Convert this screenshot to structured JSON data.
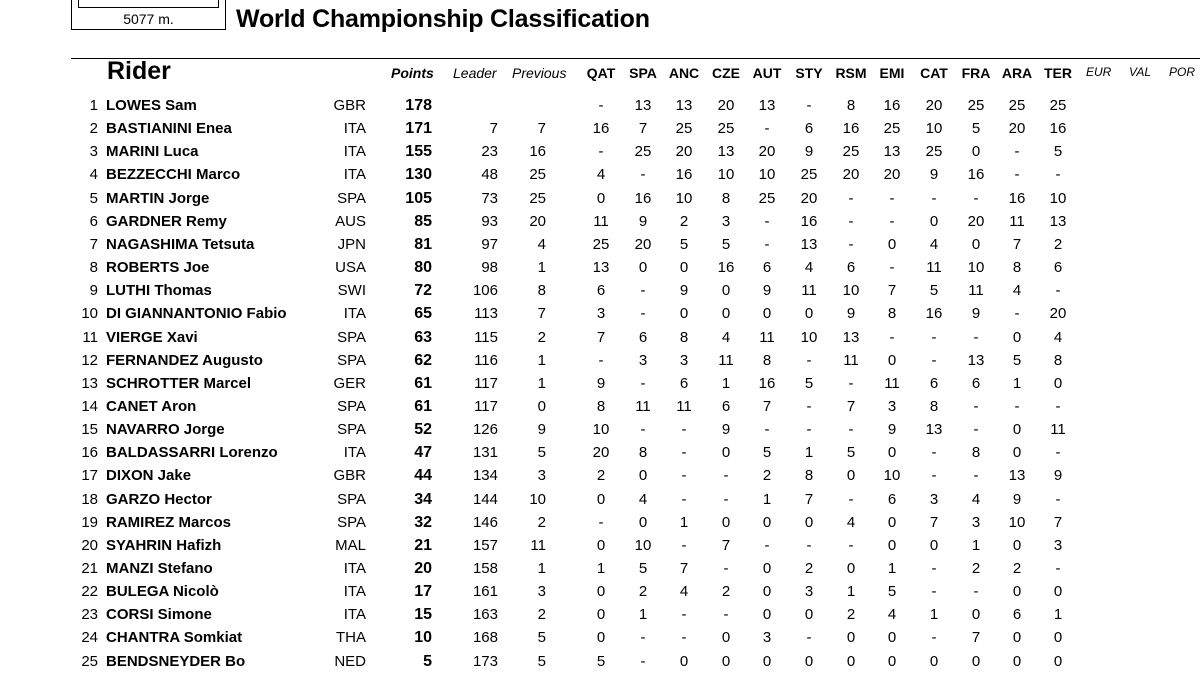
{
  "track_length": "5077 m.",
  "title": "World Championship Classification",
  "headers": {
    "rider": "Rider",
    "points": "Points",
    "leader": "Leader",
    "previous": "Previous",
    "rounds": [
      "QAT",
      "SPA",
      "ANC",
      "CZE",
      "AUT",
      "STY",
      "RSM",
      "EMI",
      "CAT",
      "FRA",
      "ARA",
      "TER"
    ],
    "future_rounds": [
      "EUR",
      "VAL",
      "POR"
    ]
  },
  "rows": [
    {
      "pos": "1",
      "name": "LOWES Sam",
      "nat": "GBR",
      "points": "178",
      "leader": "",
      "previous": "",
      "rounds": [
        "-",
        "13",
        "13",
        "20",
        "13",
        "-",
        "8",
        "16",
        "20",
        "25",
        "25",
        "25"
      ]
    },
    {
      "pos": "2",
      "name": "BASTIANINI Enea",
      "nat": "ITA",
      "points": "171",
      "leader": "7",
      "previous": "7",
      "rounds": [
        "16",
        "7",
        "25",
        "25",
        "-",
        "6",
        "16",
        "25",
        "10",
        "5",
        "20",
        "16"
      ]
    },
    {
      "pos": "3",
      "name": "MARINI Luca",
      "nat": "ITA",
      "points": "155",
      "leader": "23",
      "previous": "16",
      "rounds": [
        "-",
        "25",
        "20",
        "13",
        "20",
        "9",
        "25",
        "13",
        "25",
        "0",
        "-",
        "5"
      ]
    },
    {
      "pos": "4",
      "name": "BEZZECCHI Marco",
      "nat": "ITA",
      "points": "130",
      "leader": "48",
      "previous": "25",
      "rounds": [
        "4",
        "-",
        "16",
        "10",
        "10",
        "25",
        "20",
        "20",
        "9",
        "16",
        "-",
        "-"
      ]
    },
    {
      "pos": "5",
      "name": "MARTIN Jorge",
      "nat": "SPA",
      "points": "105",
      "leader": "73",
      "previous": "25",
      "rounds": [
        "0",
        "16",
        "10",
        "8",
        "25",
        "20",
        "-",
        "-",
        "-",
        "-",
        "16",
        "10"
      ]
    },
    {
      "pos": "6",
      "name": "GARDNER Remy",
      "nat": "AUS",
      "points": "85",
      "leader": "93",
      "previous": "20",
      "rounds": [
        "11",
        "9",
        "2",
        "3",
        "-",
        "16",
        "-",
        "-",
        "0",
        "20",
        "11",
        "13"
      ]
    },
    {
      "pos": "7",
      "name": "NAGASHIMA Tetsuta",
      "nat": "JPN",
      "points": "81",
      "leader": "97",
      "previous": "4",
      "rounds": [
        "25",
        "20",
        "5",
        "5",
        "-",
        "13",
        "-",
        "0",
        "4",
        "0",
        "7",
        "2"
      ]
    },
    {
      "pos": "8",
      "name": "ROBERTS Joe",
      "nat": "USA",
      "points": "80",
      "leader": "98",
      "previous": "1",
      "rounds": [
        "13",
        "0",
        "0",
        "16",
        "6",
        "4",
        "6",
        "-",
        "11",
        "10",
        "8",
        "6"
      ]
    },
    {
      "pos": "9",
      "name": "LUTHI Thomas",
      "nat": "SWI",
      "points": "72",
      "leader": "106",
      "previous": "8",
      "rounds": [
        "6",
        "-",
        "9",
        "0",
        "9",
        "11",
        "10",
        "7",
        "5",
        "11",
        "4",
        "-"
      ]
    },
    {
      "pos": "10",
      "name": "DI GIANNANTONIO Fabio",
      "nat": "ITA",
      "points": "65",
      "leader": "113",
      "previous": "7",
      "rounds": [
        "3",
        "-",
        "0",
        "0",
        "0",
        "0",
        "9",
        "8",
        "16",
        "9",
        "-",
        "20"
      ]
    },
    {
      "pos": "11",
      "name": "VIERGE Xavi",
      "nat": "SPA",
      "points": "63",
      "leader": "115",
      "previous": "2",
      "rounds": [
        "7",
        "6",
        "8",
        "4",
        "11",
        "10",
        "13",
        "-",
        "-",
        "-",
        "0",
        "4"
      ]
    },
    {
      "pos": "12",
      "name": "FERNANDEZ Augusto",
      "nat": "SPA",
      "points": "62",
      "leader": "116",
      "previous": "1",
      "rounds": [
        "-",
        "3",
        "3",
        "11",
        "8",
        "-",
        "11",
        "0",
        "-",
        "13",
        "5",
        "8"
      ]
    },
    {
      "pos": "13",
      "name": "SCHROTTER Marcel",
      "nat": "GER",
      "points": "61",
      "leader": "117",
      "previous": "1",
      "rounds": [
        "9",
        "-",
        "6",
        "1",
        "16",
        "5",
        "-",
        "11",
        "6",
        "6",
        "1",
        "0"
      ]
    },
    {
      "pos": "14",
      "name": "CANET Aron",
      "nat": "SPA",
      "points": "61",
      "leader": "117",
      "previous": "0",
      "rounds": [
        "8",
        "11",
        "11",
        "6",
        "7",
        "-",
        "7",
        "3",
        "8",
        "-",
        "-",
        "-"
      ]
    },
    {
      "pos": "15",
      "name": "NAVARRO Jorge",
      "nat": "SPA",
      "points": "52",
      "leader": "126",
      "previous": "9",
      "rounds": [
        "10",
        "-",
        "-",
        "9",
        "-",
        "-",
        "-",
        "9",
        "13",
        "-",
        "0",
        "11"
      ]
    },
    {
      "pos": "16",
      "name": "BALDASSARRI Lorenzo",
      "nat": "ITA",
      "points": "47",
      "leader": "131",
      "previous": "5",
      "rounds": [
        "20",
        "8",
        "-",
        "0",
        "5",
        "1",
        "5",
        "0",
        "-",
        "8",
        "0",
        "-"
      ]
    },
    {
      "pos": "17",
      "name": "DIXON Jake",
      "nat": "GBR",
      "points": "44",
      "leader": "134",
      "previous": "3",
      "rounds": [
        "2",
        "0",
        "-",
        "-",
        "2",
        "8",
        "0",
        "10",
        "-",
        "-",
        "13",
        "9"
      ]
    },
    {
      "pos": "18",
      "name": "GARZO Hector",
      "nat": "SPA",
      "points": "34",
      "leader": "144",
      "previous": "10",
      "rounds": [
        "0",
        "4",
        "-",
        "-",
        "1",
        "7",
        "-",
        "6",
        "3",
        "4",
        "9",
        "-"
      ]
    },
    {
      "pos": "19",
      "name": "RAMIREZ Marcos",
      "nat": "SPA",
      "points": "32",
      "leader": "146",
      "previous": "2",
      "rounds": [
        "-",
        "0",
        "1",
        "0",
        "0",
        "0",
        "4",
        "0",
        "7",
        "3",
        "10",
        "7"
      ]
    },
    {
      "pos": "20",
      "name": "SYAHRIN Hafizh",
      "nat": "MAL",
      "points": "21",
      "leader": "157",
      "previous": "11",
      "rounds": [
        "0",
        "10",
        "-",
        "7",
        "-",
        "-",
        "-",
        "0",
        "0",
        "1",
        "0",
        "3"
      ]
    },
    {
      "pos": "21",
      "name": "MANZI Stefano",
      "nat": "ITA",
      "points": "20",
      "leader": "158",
      "previous": "1",
      "rounds": [
        "1",
        "5",
        "7",
        "-",
        "0",
        "2",
        "0",
        "1",
        "-",
        "2",
        "2",
        "-"
      ]
    },
    {
      "pos": "22",
      "name": "BULEGA Nicolò",
      "nat": "ITA",
      "points": "17",
      "leader": "161",
      "previous": "3",
      "rounds": [
        "0",
        "2",
        "4",
        "2",
        "0",
        "3",
        "1",
        "5",
        "-",
        "-",
        "0",
        "0"
      ]
    },
    {
      "pos": "23",
      "name": "CORSI Simone",
      "nat": "ITA",
      "points": "15",
      "leader": "163",
      "previous": "2",
      "rounds": [
        "0",
        "1",
        "-",
        "-",
        "0",
        "0",
        "2",
        "4",
        "1",
        "0",
        "6",
        "1"
      ]
    },
    {
      "pos": "24",
      "name": "CHANTRA Somkiat",
      "nat": "THA",
      "points": "10",
      "leader": "168",
      "previous": "5",
      "rounds": [
        "0",
        "-",
        "-",
        "0",
        "3",
        "-",
        "0",
        "0",
        "-",
        "7",
        "0",
        "0"
      ]
    },
    {
      "pos": "25",
      "name": "BENDSNEYDER Bo",
      "nat": "NED",
      "points": "5",
      "leader": "173",
      "previous": "5",
      "rounds": [
        "5",
        "-",
        "0",
        "0",
        "0",
        "0",
        "0",
        "0",
        "0",
        "0",
        "0",
        "0"
      ]
    }
  ]
}
